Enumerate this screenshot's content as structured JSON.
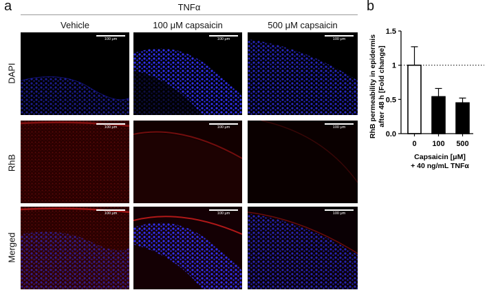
{
  "panel_a": {
    "letter": "a",
    "treatment": "TNFα",
    "columns": [
      "Vehicle",
      "100 μM capsaicin",
      "500 μM capsaicin"
    ],
    "rows": [
      "DAPI",
      "RhB",
      "Merged"
    ],
    "scale_label": "100 μm"
  },
  "panel_b": {
    "letter": "b"
  },
  "chart_data": {
    "type": "bar",
    "categories": [
      "0",
      "100",
      "500"
    ],
    "values": [
      1.0,
      0.54,
      0.45
    ],
    "errors": [
      0.27,
      0.12,
      0.07
    ],
    "bar_fills": [
      "#ffffff",
      "#000000",
      "#000000"
    ],
    "ylabel_lines": [
      "RhB permeability in epidermis",
      "after 48 h [Fold change]"
    ],
    "xlabel_lines": [
      "Capsaicin [μM]",
      "+ 40 ng/mL TNFα"
    ],
    "ylim": [
      0,
      1.5
    ],
    "yticks": [
      "0.0",
      "0.5",
      "1",
      "1.5"
    ],
    "reference_line": 1
  }
}
